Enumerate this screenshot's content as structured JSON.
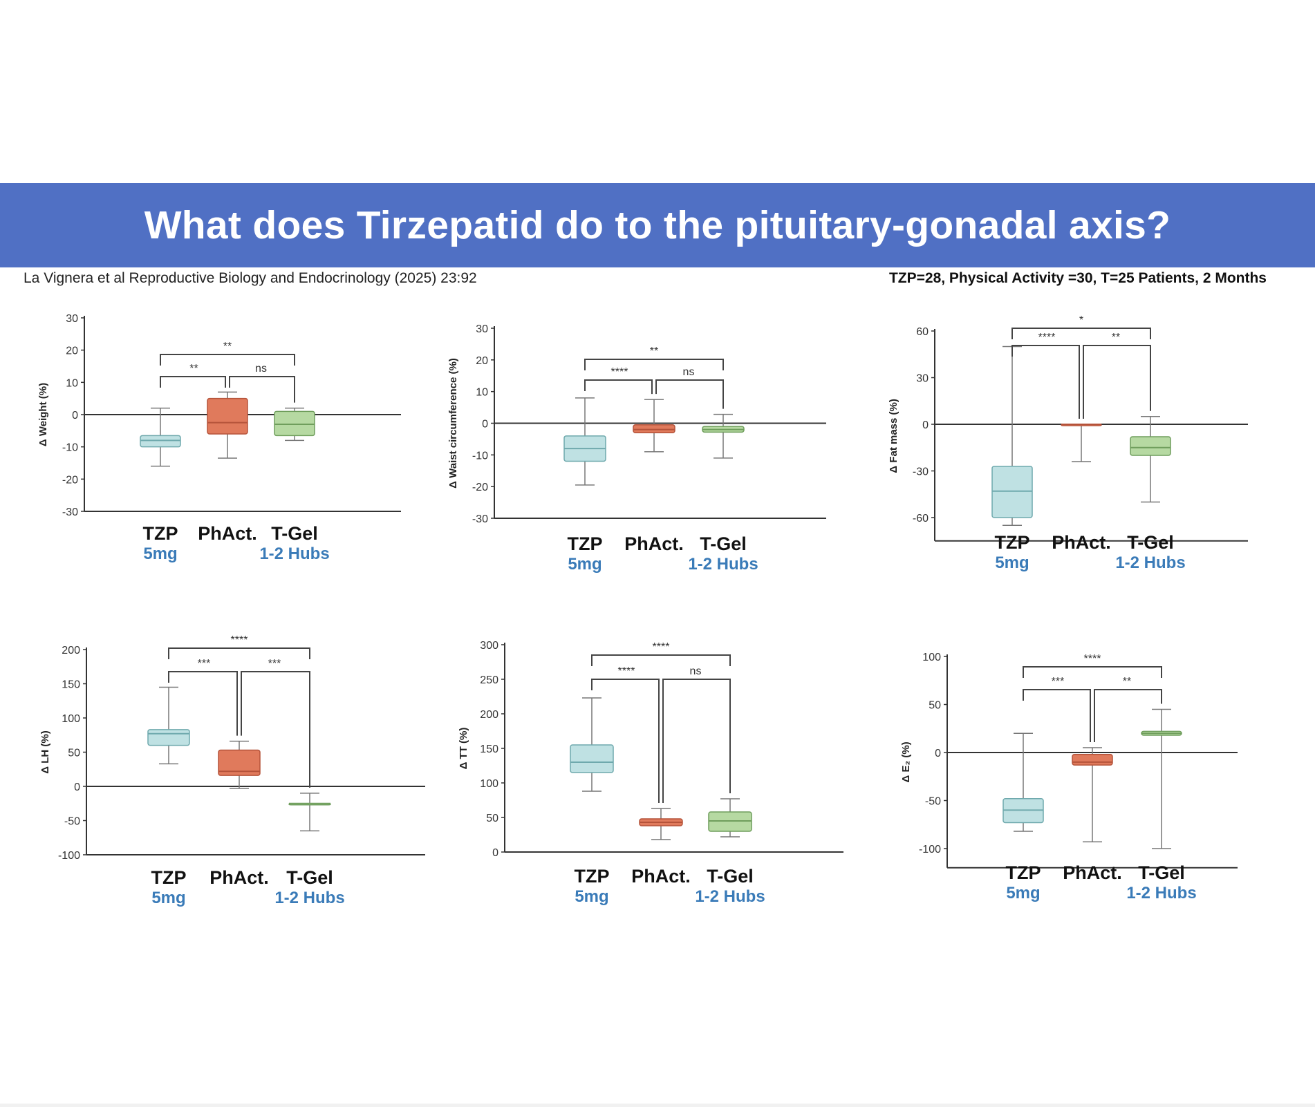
{
  "slide": {
    "title": "What does Tirzepatid do to the pituitary-gonadal axis?",
    "citation": "La Vignera et al Reproductive Biology and Endocrinology (2025) 23:92",
    "cohort": "TZP=28, Physical Activity =30, T=25 Patients, 2 Months"
  },
  "colors": {
    "banner": "#5070c4",
    "TZP": "#bfe1e3",
    "TZP_stroke": "#6fa9ad",
    "PhAct": "#e07a5c",
    "PhAct_stroke": "#b5533a",
    "TGel": "#b6d9a2",
    "TGel_stroke": "#6f9e5c",
    "sublabel": "#3a7bb8"
  },
  "categories": [
    {
      "name": "TZP",
      "sub": "5mg"
    },
    {
      "name": "PhAct.",
      "sub": ""
    },
    {
      "name": "T-Gel",
      "sub": "1-2 Hubs"
    }
  ],
  "chart_data": [
    {
      "type": "box",
      "ylabel": "Δ Weight (%)",
      "ylim": [
        -30,
        30
      ],
      "yticks": [
        "30",
        "20",
        "10",
        "0",
        "-10",
        "-20",
        "-30"
      ],
      "boxes": [
        {
          "group": "TZP",
          "min": -16,
          "q1": -10,
          "median": -8,
          "q3": -6.5,
          "max": 2
        },
        {
          "group": "PhAct.",
          "min": -13.5,
          "q1": -6,
          "median": -2.5,
          "q3": 5,
          "max": 7
        },
        {
          "group": "T-Gel",
          "min": -8,
          "q1": -6.5,
          "median": -3,
          "q3": 1,
          "max": 2
        }
      ],
      "significance": [
        {
          "from": "TZP",
          "to": "T-Gel",
          "label": "**"
        },
        {
          "from": "TZP",
          "to": "PhAct.",
          "label": "**"
        },
        {
          "from": "PhAct.",
          "to": "T-Gel",
          "label": "ns"
        }
      ]
    },
    {
      "type": "box",
      "ylabel": "Δ Waist circumference (%)",
      "ylim": [
        -30,
        30
      ],
      "yticks": [
        "30",
        "20",
        "10",
        "0",
        "-10",
        "-20",
        "-30"
      ],
      "boxes": [
        {
          "group": "TZP",
          "min": -19.5,
          "q1": -12,
          "median": -8,
          "q3": -4,
          "max": 8
        },
        {
          "group": "PhAct.",
          "min": -9,
          "q1": -3,
          "median": -2,
          "q3": -0.5,
          "max": 7.5
        },
        {
          "group": "T-Gel",
          "min": -11,
          "q1": -2.8,
          "median": -2,
          "q3": -1,
          "max": 2.8
        }
      ],
      "significance": [
        {
          "from": "TZP",
          "to": "T-Gel",
          "label": "**"
        },
        {
          "from": "TZP",
          "to": "PhAct.",
          "label": "****"
        },
        {
          "from": "PhAct.",
          "to": "T-Gel",
          "label": "ns"
        }
      ]
    },
    {
      "type": "box",
      "ylabel": "Δ Fat mass (%)",
      "ylim": [
        -75,
        80
      ],
      "yticks": [
        "60",
        "30",
        "0",
        "-30",
        "-60"
      ],
      "boxes": [
        {
          "group": "TZP",
          "min": -65,
          "q1": -60,
          "median": -43,
          "q3": -27,
          "max": 50
        },
        {
          "group": "PhAct.",
          "min": -24,
          "q1": 0,
          "median": 0,
          "q3": 0,
          "max": 0
        },
        {
          "group": "T-Gel",
          "min": -50,
          "q1": -20,
          "median": -15,
          "q3": -8,
          "max": 5
        }
      ],
      "significance": [
        {
          "from": "TZP",
          "to": "T-Gel",
          "label": "*"
        },
        {
          "from": "TZP",
          "to": "PhAct.",
          "label": "****"
        },
        {
          "from": "PhAct.",
          "to": "T-Gel",
          "label": "**"
        }
      ]
    },
    {
      "type": "box",
      "ylabel": "Δ LH (%)",
      "ylim": [
        -100,
        200
      ],
      "yticks": [
        "200",
        "150",
        "100",
        "50",
        "0",
        "-50",
        "-100"
      ],
      "boxes": [
        {
          "group": "TZP",
          "min": 33,
          "q1": 60,
          "median": 77,
          "q3": 83,
          "max": 145
        },
        {
          "group": "PhAct.",
          "min": -3,
          "q1": 16,
          "median": 22,
          "q3": 53,
          "max": 66
        },
        {
          "group": "T-Gel",
          "min": -65,
          "q1": -25,
          "median": -25,
          "q3": -25,
          "max": -10
        }
      ],
      "significance": [
        {
          "from": "TZP",
          "to": "T-Gel",
          "label": "****"
        },
        {
          "from": "TZP",
          "to": "PhAct.",
          "label": "***"
        },
        {
          "from": "PhAct.",
          "to": "T-Gel",
          "label": "***"
        }
      ]
    },
    {
      "type": "box",
      "ylabel": "Δ TT (%)",
      "ylim": [
        0,
        300
      ],
      "yticks": [
        "300",
        "250",
        "200",
        "150",
        "100",
        "50",
        "0"
      ],
      "boxes": [
        {
          "group": "TZP",
          "min": 88,
          "q1": 115,
          "median": 130,
          "q3": 155,
          "max": 223
        },
        {
          "group": "PhAct.",
          "min": 18,
          "q1": 38,
          "median": 43,
          "q3": 48,
          "max": 63
        },
        {
          "group": "T-Gel",
          "min": 22,
          "q1": 30,
          "median": 45,
          "q3": 58,
          "max": 77
        }
      ],
      "significance": [
        {
          "from": "TZP",
          "to": "T-Gel",
          "label": "****"
        },
        {
          "from": "TZP",
          "to": "PhAct.",
          "label": "****"
        },
        {
          "from": "PhAct.",
          "to": "T-Gel",
          "label": "ns"
        }
      ]
    },
    {
      "type": "box",
      "ylabel": "Δ E₂ (%)",
      "ylim": [
        -120,
        100
      ],
      "yticks": [
        "100",
        "50",
        "0",
        "-50",
        "-100"
      ],
      "boxes": [
        {
          "group": "TZP",
          "min": -82,
          "q1": -73,
          "median": -60,
          "q3": -48,
          "max": 20
        },
        {
          "group": "PhAct.",
          "min": -93,
          "q1": -13,
          "median": -10,
          "q3": -2,
          "max": 5
        },
        {
          "group": "T-Gel",
          "min": -100,
          "q1": 18,
          "median": 20,
          "q3": 22,
          "max": 45
        }
      ],
      "significance": [
        {
          "from": "TZP",
          "to": "T-Gel",
          "label": "****"
        },
        {
          "from": "TZP",
          "to": "PhAct.",
          "label": "***"
        },
        {
          "from": "PhAct.",
          "to": "T-Gel",
          "label": "**"
        }
      ]
    }
  ]
}
